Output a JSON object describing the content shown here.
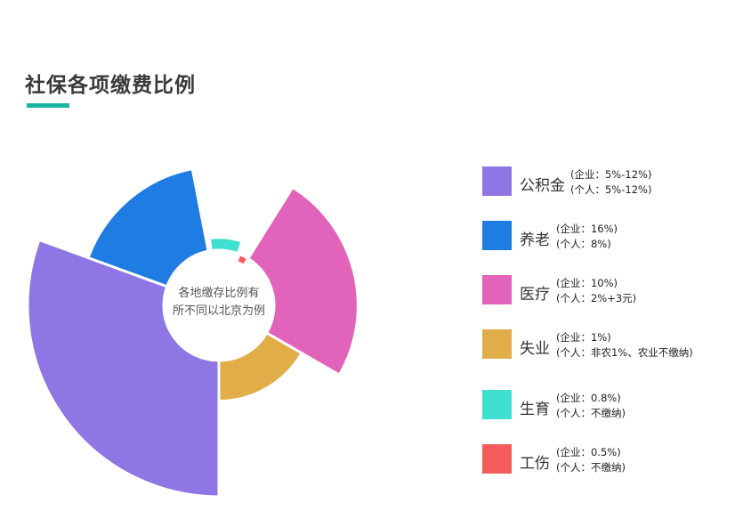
{
  "header": {
    "title": "社保各项缴费比例"
  },
  "chart_data": {
    "type": "pie",
    "center_label": [
      "各地缴存比例有",
      "所不同以北京为例"
    ],
    "series": [
      {
        "name": "公积金",
        "company": "(企业：5%-12%)",
        "personal": "(个人：5%-12%)",
        "color": "#8e76e4",
        "value": 220
      },
      {
        "name": "养老",
        "company": "(企业：16%)",
        "personal": "(个人：8%)",
        "color": "#1f7ce3",
        "value": 160
      },
      {
        "name": "医疗",
        "company": "(企业：10%)",
        "personal": "(个人：2%+3元)",
        "color": "#e263ba",
        "value": 160
      },
      {
        "name": "失业",
        "company": "(企业：1%)",
        "personal": "(个人：非农1%、农业不缴纳)",
        "color": "#e1ad48",
        "value": 110
      },
      {
        "name": "生育",
        "company": "(企业：0.8%)",
        "personal": "(个人：不缴纳)",
        "color": "#3fe0cf",
        "value": 78
      },
      {
        "name": "工伤",
        "company": "(企业：0.5%)",
        "personal": "(个人：不缴纳)",
        "color": "#f45b5b",
        "value": 54
      }
    ]
  }
}
